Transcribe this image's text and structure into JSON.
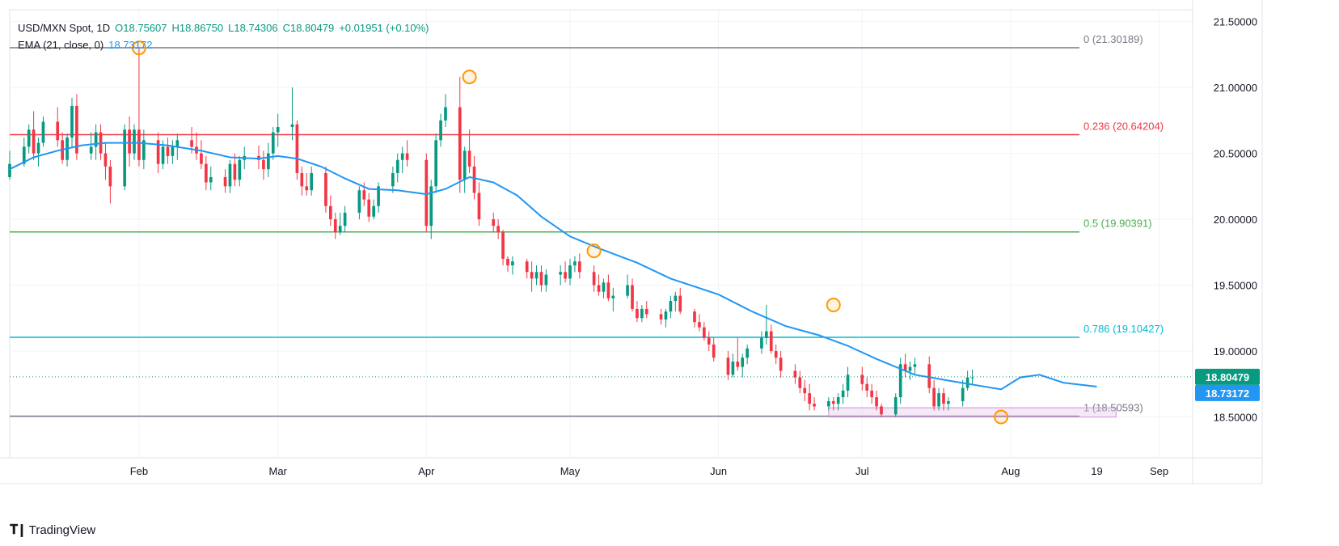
{
  "legend": {
    "symbol": "USD/MXN Spot, 1D",
    "open": "O18.75607",
    "high": "H18.86750",
    "low": "L18.74306",
    "close": "C18.80479",
    "change": "+0.01951 (+0.10%)",
    "ema_label": "EMA (21, close, 0)",
    "ema_value": "18.73172"
  },
  "brand": {
    "name": "TradingView",
    "icon": "tradingview-logo-icon"
  },
  "colors": {
    "up": "#089981",
    "down": "#f23645",
    "ema": "#2196f3",
    "fib0": "#787b86",
    "fib236": "#f23645",
    "fib5": "#4caf50",
    "fib786": "#00bcd4",
    "fib1": "#787b86",
    "zone": "#e1bee7",
    "marker": "#ff9800",
    "grid": "#f0f3fa",
    "axis_text": "#131722"
  },
  "chart_data": {
    "type": "candlestick",
    "title": "USD/MXN Spot, 1D",
    "y_ticks": [
      "21.50000",
      "21.00000",
      "20.50000",
      "20.00000",
      "19.50000",
      "19.00000",
      "18.50000"
    ],
    "x_ticks": [
      {
        "label": "Feb",
        "date": "2024-02-01"
      },
      {
        "label": "Mar",
        "date": "2024-03-01"
      },
      {
        "label": "Apr",
        "date": "2024-04-01"
      },
      {
        "label": "May",
        "date": "2024-05-01"
      },
      {
        "label": "Jun",
        "date": "2024-06-01"
      },
      {
        "label": "Jul",
        "date": "2024-07-01"
      },
      {
        "label": "Aug",
        "date": "2024-08-01"
      },
      {
        "label": "19",
        "date": "2024-08-19"
      },
      {
        "label": "Sep",
        "date": "2024-09-01"
      }
    ],
    "date_range": [
      "2024-01-05",
      "2024-09-08"
    ],
    "ylim": [
      18.19,
      21.59
    ],
    "grid": true,
    "fibonacci_levels": [
      {
        "label": "0 (21.30189)",
        "value": 21.30189,
        "color_key": "fib0"
      },
      {
        "label": "0.236 (20.64204)",
        "value": 20.64204,
        "color_key": "fib236"
      },
      {
        "label": "0.5 (19.90391)",
        "value": 19.90391,
        "color_key": "fib5"
      },
      {
        "label": "0.786 (19.10427)",
        "value": 19.10427,
        "color_key": "fib786"
      },
      {
        "label": "1 (18.50593)",
        "value": 18.50593,
        "color_key": "fib1"
      }
    ],
    "support_zone": {
      "from": "2024-06-24",
      "to": "2024-08-23",
      "low": 18.5,
      "high": 18.57
    },
    "price_labels": [
      {
        "label": "18.80479",
        "value": 18.80479,
        "color_key": "up"
      },
      {
        "label": "18.73172",
        "value": 18.73172,
        "color_key": "ema"
      }
    ],
    "markers": [
      {
        "date": "2024-02-01",
        "value": 21.3
      },
      {
        "date": "2024-04-10",
        "value": 21.08
      },
      {
        "date": "2024-05-06",
        "value": 19.76
      },
      {
        "date": "2024-06-25",
        "value": 19.35
      },
      {
        "date": "2024-07-30",
        "value": 18.5
      }
    ],
    "ema": {
      "name": "EMA (21, close, 0)",
      "points": [
        [
          "2024-01-05",
          20.38
        ],
        [
          "2024-01-10",
          20.47
        ],
        [
          "2024-01-15",
          20.52
        ],
        [
          "2024-01-20",
          20.56
        ],
        [
          "2024-01-25",
          20.58
        ],
        [
          "2024-02-01",
          20.58
        ],
        [
          "2024-02-07",
          20.56
        ],
        [
          "2024-02-14",
          20.52
        ],
        [
          "2024-02-20",
          20.47
        ],
        [
          "2024-02-26",
          20.46
        ],
        [
          "2024-03-01",
          20.48
        ],
        [
          "2024-03-05",
          20.46
        ],
        [
          "2024-03-10",
          20.4
        ],
        [
          "2024-03-15",
          20.31
        ],
        [
          "2024-03-20",
          20.23
        ],
        [
          "2024-03-26",
          20.22
        ],
        [
          "2024-04-01",
          20.19
        ],
        [
          "2024-04-05",
          20.23
        ],
        [
          "2024-04-10",
          20.32
        ],
        [
          "2024-04-15",
          20.28
        ],
        [
          "2024-04-20",
          20.18
        ],
        [
          "2024-04-25",
          20.02
        ],
        [
          "2024-05-01",
          19.87
        ],
        [
          "2024-05-07",
          19.78
        ],
        [
          "2024-05-15",
          19.67
        ],
        [
          "2024-05-22",
          19.55
        ],
        [
          "2024-06-01",
          19.43
        ],
        [
          "2024-06-08",
          19.3
        ],
        [
          "2024-06-15",
          19.19
        ],
        [
          "2024-06-22",
          19.12
        ],
        [
          "2024-06-28",
          19.04
        ],
        [
          "2024-07-04",
          18.94
        ],
        [
          "2024-07-12",
          18.82
        ],
        [
          "2024-07-20",
          18.77
        ],
        [
          "2024-07-30",
          18.71
        ],
        [
          "2024-08-03",
          18.8
        ],
        [
          "2024-08-07",
          18.82
        ],
        [
          "2024-08-12",
          18.76
        ],
        [
          "2024-08-19",
          18.73
        ]
      ]
    },
    "candles": [
      [
        "2024-01-05",
        20.32,
        20.52,
        20.3,
        20.42
      ],
      [
        "2024-01-08",
        20.42,
        20.62,
        20.4,
        20.55
      ],
      [
        "2024-01-09",
        20.55,
        20.72,
        20.5,
        20.68
      ],
      [
        "2024-01-10",
        20.68,
        20.82,
        20.45,
        20.5
      ],
      [
        "2024-01-11",
        20.5,
        20.62,
        20.4,
        20.58
      ],
      [
        "2024-01-12",
        20.58,
        20.78,
        20.55,
        20.74
      ],
      [
        "2024-01-15",
        20.74,
        20.85,
        20.55,
        20.6
      ],
      [
        "2024-01-16",
        20.6,
        20.66,
        20.42,
        20.45
      ],
      [
        "2024-01-17",
        20.45,
        20.65,
        20.4,
        20.62
      ],
      [
        "2024-01-18",
        20.62,
        20.92,
        20.55,
        20.86
      ],
      [
        "2024-01-19",
        20.86,
        20.95,
        20.45,
        20.5
      ],
      [
        "2024-01-22",
        20.5,
        20.66,
        20.45,
        20.55
      ],
      [
        "2024-01-23",
        20.55,
        20.72,
        20.45,
        20.66
      ],
      [
        "2024-01-24",
        20.66,
        20.72,
        20.45,
        20.5
      ],
      [
        "2024-01-25",
        20.5,
        20.58,
        20.3,
        20.4
      ],
      [
        "2024-01-26",
        20.4,
        20.45,
        20.12,
        20.25
      ],
      [
        "2024-01-29",
        20.25,
        20.72,
        20.22,
        20.68
      ],
      [
        "2024-01-30",
        20.68,
        20.78,
        20.4,
        20.5
      ],
      [
        "2024-01-31",
        20.5,
        20.72,
        20.45,
        20.68
      ],
      [
        "2024-02-01",
        20.68,
        21.3,
        20.4,
        20.45
      ],
      [
        "2024-02-02",
        20.45,
        20.68,
        20.38,
        20.6
      ],
      [
        "2024-02-05",
        20.6,
        20.66,
        20.35,
        20.42
      ],
      [
        "2024-02-06",
        20.42,
        20.6,
        20.38,
        20.55
      ],
      [
        "2024-02-07",
        20.55,
        20.62,
        20.42,
        20.48
      ],
      [
        "2024-02-08",
        20.48,
        20.6,
        20.42,
        20.55
      ],
      [
        "2024-02-09",
        20.55,
        20.65,
        20.45,
        20.6
      ],
      [
        "2024-02-12",
        20.6,
        20.7,
        20.5,
        20.55
      ],
      [
        "2024-02-13",
        20.55,
        20.66,
        20.45,
        20.5
      ],
      [
        "2024-02-14",
        20.5,
        20.6,
        20.38,
        20.42
      ],
      [
        "2024-02-15",
        20.42,
        20.48,
        20.22,
        20.28
      ],
      [
        "2024-02-16",
        20.28,
        20.4,
        20.22,
        20.32
      ],
      [
        "2024-02-19",
        20.32,
        20.38,
        20.2,
        20.25
      ],
      [
        "2024-02-20",
        20.25,
        20.45,
        20.2,
        20.42
      ],
      [
        "2024-02-21",
        20.42,
        20.5,
        20.25,
        20.3
      ],
      [
        "2024-02-22",
        20.3,
        20.48,
        20.25,
        20.45
      ],
      [
        "2024-02-23",
        20.45,
        20.55,
        20.38,
        20.48
      ],
      [
        "2024-02-26",
        20.48,
        20.56,
        20.38,
        20.45
      ],
      [
        "2024-02-27",
        20.45,
        20.52,
        20.3,
        20.38
      ],
      [
        "2024-02-28",
        20.38,
        20.58,
        20.32,
        20.5
      ],
      [
        "2024-02-29",
        20.5,
        20.7,
        20.45,
        20.66
      ],
      [
        "2024-03-01",
        20.66,
        20.8,
        20.55,
        20.7
      ],
      [
        "2024-03-04",
        20.7,
        21.0,
        20.6,
        20.72
      ],
      [
        "2024-03-05",
        20.72,
        20.75,
        20.3,
        20.35
      ],
      [
        "2024-03-06",
        20.35,
        20.4,
        20.18,
        20.25
      ],
      [
        "2024-03-07",
        20.25,
        20.35,
        20.18,
        20.22
      ],
      [
        "2024-03-08",
        20.22,
        20.4,
        20.18,
        20.35
      ],
      [
        "2024-03-11",
        20.35,
        20.4,
        20.05,
        20.1
      ],
      [
        "2024-03-12",
        20.1,
        20.18,
        19.95,
        20.0
      ],
      [
        "2024-03-13",
        20.0,
        20.05,
        19.85,
        19.9
      ],
      [
        "2024-03-14",
        19.9,
        20.05,
        19.88,
        19.95
      ],
      [
        "2024-03-15",
        19.95,
        20.1,
        19.9,
        20.05
      ],
      [
        "2024-03-18",
        20.05,
        20.25,
        20.0,
        20.22
      ],
      [
        "2024-03-19",
        20.22,
        20.28,
        20.1,
        20.15
      ],
      [
        "2024-03-20",
        20.15,
        20.2,
        19.98,
        20.02
      ],
      [
        "2024-03-21",
        20.02,
        20.15,
        20.0,
        20.1
      ],
      [
        "2024-03-22",
        20.1,
        20.28,
        20.05,
        20.25
      ],
      [
        "2024-03-25",
        20.25,
        20.4,
        20.2,
        20.35
      ],
      [
        "2024-03-26",
        20.35,
        20.5,
        20.28,
        20.45
      ],
      [
        "2024-03-27",
        20.45,
        20.55,
        20.35,
        20.5
      ],
      [
        "2024-03-28",
        20.5,
        20.6,
        20.4,
        20.45
      ],
      [
        "2024-04-01",
        20.45,
        20.5,
        19.9,
        19.95
      ],
      [
        "2024-04-02",
        19.95,
        20.3,
        19.85,
        20.25
      ],
      [
        "2024-04-03",
        20.25,
        20.65,
        20.2,
        20.6
      ],
      [
        "2024-04-04",
        20.6,
        20.8,
        20.55,
        20.75
      ],
      [
        "2024-04-05",
        20.75,
        20.95,
        20.7,
        20.85
      ],
      [
        "2024-04-08",
        20.85,
        21.08,
        20.2,
        20.3
      ],
      [
        "2024-04-09",
        20.3,
        20.55,
        20.2,
        20.52
      ],
      [
        "2024-04-10",
        20.52,
        20.68,
        20.35,
        20.4
      ],
      [
        "2024-04-11",
        20.4,
        20.48,
        20.15,
        20.2
      ],
      [
        "2024-04-12",
        20.2,
        20.28,
        19.95,
        20.0
      ],
      [
        "2024-04-15",
        20.0,
        20.05,
        19.9,
        19.95
      ],
      [
        "2024-04-16",
        19.95,
        20.0,
        19.85,
        19.9
      ],
      [
        "2024-04-17",
        19.9,
        19.92,
        19.65,
        19.7
      ],
      [
        "2024-04-18",
        19.7,
        19.72,
        19.6,
        19.65
      ],
      [
        "2024-04-19",
        19.65,
        19.72,
        19.58,
        19.68
      ],
      [
        "2024-04-22",
        19.68,
        19.7,
        19.55,
        19.6
      ],
      [
        "2024-04-23",
        19.6,
        19.68,
        19.45,
        19.55
      ],
      [
        "2024-04-24",
        19.55,
        19.65,
        19.5,
        19.6
      ],
      [
        "2024-04-25",
        19.6,
        19.65,
        19.45,
        19.5
      ],
      [
        "2024-04-26",
        19.5,
        19.62,
        19.45,
        19.58
      ],
      [
        "2024-04-29",
        19.58,
        19.65,
        19.5,
        19.6
      ],
      [
        "2024-04-30",
        19.6,
        19.68,
        19.52,
        19.55
      ],
      [
        "2024-05-01",
        19.55,
        19.7,
        19.5,
        19.65
      ],
      [
        "2024-05-02",
        19.65,
        19.72,
        19.6,
        19.68
      ],
      [
        "2024-05-03",
        19.68,
        19.74,
        19.55,
        19.6
      ],
      [
        "2024-05-06",
        19.6,
        19.65,
        19.45,
        19.5
      ],
      [
        "2024-05-07",
        19.5,
        19.58,
        19.42,
        19.45
      ],
      [
        "2024-05-08",
        19.45,
        19.55,
        19.4,
        19.52
      ],
      [
        "2024-05-09",
        19.52,
        19.58,
        19.38,
        19.4
      ],
      [
        "2024-05-10",
        19.4,
        19.48,
        19.3,
        19.42
      ],
      [
        "2024-05-13",
        19.42,
        19.58,
        19.4,
        19.5
      ],
      [
        "2024-05-14",
        19.5,
        19.55,
        19.3,
        19.32
      ],
      [
        "2024-05-15",
        19.32,
        19.38,
        19.22,
        19.25
      ],
      [
        "2024-05-16",
        19.25,
        19.35,
        19.22,
        19.32
      ],
      [
        "2024-05-17",
        19.32,
        19.38,
        19.25,
        19.28
      ],
      [
        "2024-05-20",
        19.28,
        19.32,
        19.2,
        19.24
      ],
      [
        "2024-05-21",
        19.24,
        19.32,
        19.18,
        19.3
      ],
      [
        "2024-05-22",
        19.3,
        19.42,
        19.25,
        19.38
      ],
      [
        "2024-05-23",
        19.38,
        19.45,
        19.3,
        19.42
      ],
      [
        "2024-05-24",
        19.42,
        19.48,
        19.28,
        19.3
      ],
      [
        "2024-05-27",
        19.3,
        19.32,
        19.18,
        19.22
      ],
      [
        "2024-05-28",
        19.22,
        19.28,
        19.15,
        19.18
      ],
      [
        "2024-05-29",
        19.18,
        19.22,
        19.08,
        19.1
      ],
      [
        "2024-05-30",
        19.1,
        19.15,
        19.0,
        19.05
      ],
      [
        "2024-05-31",
        19.05,
        19.1,
        18.92,
        18.95
      ],
      [
        "2024-06-03",
        18.95,
        19.0,
        18.78,
        18.82
      ],
      [
        "2024-06-04",
        18.82,
        18.98,
        18.8,
        18.92
      ],
      [
        "2024-06-05",
        18.92,
        19.1,
        18.85,
        18.88
      ],
      [
        "2024-06-06",
        18.88,
        18.98,
        18.8,
        18.95
      ],
      [
        "2024-06-07",
        18.95,
        19.05,
        18.9,
        19.02
      ],
      [
        "2024-06-10",
        19.02,
        19.15,
        18.98,
        19.1
      ],
      [
        "2024-06-11",
        19.1,
        19.35,
        19.05,
        19.15
      ],
      [
        "2024-06-12",
        19.15,
        19.2,
        18.98,
        19.0
      ],
      [
        "2024-06-13",
        19.0,
        19.05,
        18.9,
        18.95
      ],
      [
        "2024-06-14",
        18.95,
        19.0,
        18.8,
        18.85
      ],
      [
        "2024-06-17",
        18.85,
        18.9,
        18.75,
        18.8
      ],
      [
        "2024-06-18",
        18.8,
        18.85,
        18.68,
        18.72
      ],
      [
        "2024-06-19",
        18.72,
        18.78,
        18.62,
        18.68
      ],
      [
        "2024-06-20",
        18.68,
        18.75,
        18.55,
        18.6
      ],
      [
        "2024-06-21",
        18.6,
        18.65,
        18.55,
        18.58
      ],
      [
        "2024-06-24",
        18.58,
        18.65,
        18.55,
        18.62
      ],
      [
        "2024-06-25",
        18.62,
        18.65,
        18.55,
        18.6
      ],
      [
        "2024-06-26",
        18.6,
        18.68,
        18.55,
        18.65
      ],
      [
        "2024-06-27",
        18.65,
        18.75,
        18.6,
        18.7
      ],
      [
        "2024-06-28",
        18.7,
        18.88,
        18.65,
        18.82
      ],
      [
        "2024-07-01",
        18.82,
        18.88,
        18.7,
        18.75
      ],
      [
        "2024-07-02",
        18.75,
        18.8,
        18.65,
        18.7
      ],
      [
        "2024-07-03",
        18.7,
        18.75,
        18.6,
        18.65
      ],
      [
        "2024-07-04",
        18.65,
        18.7,
        18.55,
        18.58
      ],
      [
        "2024-07-05",
        18.58,
        18.6,
        18.5,
        18.52
      ],
      [
        "2024-07-08",
        18.52,
        18.68,
        18.5,
        18.65
      ],
      [
        "2024-07-09",
        18.65,
        18.95,
        18.6,
        18.9
      ],
      [
        "2024-07-10",
        18.9,
        18.98,
        18.8,
        18.85
      ],
      [
        "2024-07-11",
        18.85,
        18.92,
        18.78,
        18.88
      ],
      [
        "2024-07-12",
        18.88,
        18.95,
        18.82,
        18.9
      ],
      [
        "2024-07-15",
        18.9,
        18.96,
        18.68,
        18.72
      ],
      [
        "2024-07-16",
        18.72,
        18.78,
        18.55,
        18.58
      ],
      [
        "2024-07-17",
        18.58,
        18.72,
        18.55,
        18.68
      ],
      [
        "2024-07-18",
        18.68,
        18.72,
        18.55,
        18.6
      ],
      [
        "2024-07-19",
        18.6,
        18.65,
        18.55,
        18.62
      ],
      [
        "2024-07-22",
        18.62,
        18.78,
        18.58,
        18.72
      ],
      [
        "2024-07-23",
        18.72,
        18.85,
        18.7,
        18.8
      ],
      [
        "2024-07-24",
        18.8,
        18.86,
        18.74,
        18.8
      ]
    ]
  }
}
